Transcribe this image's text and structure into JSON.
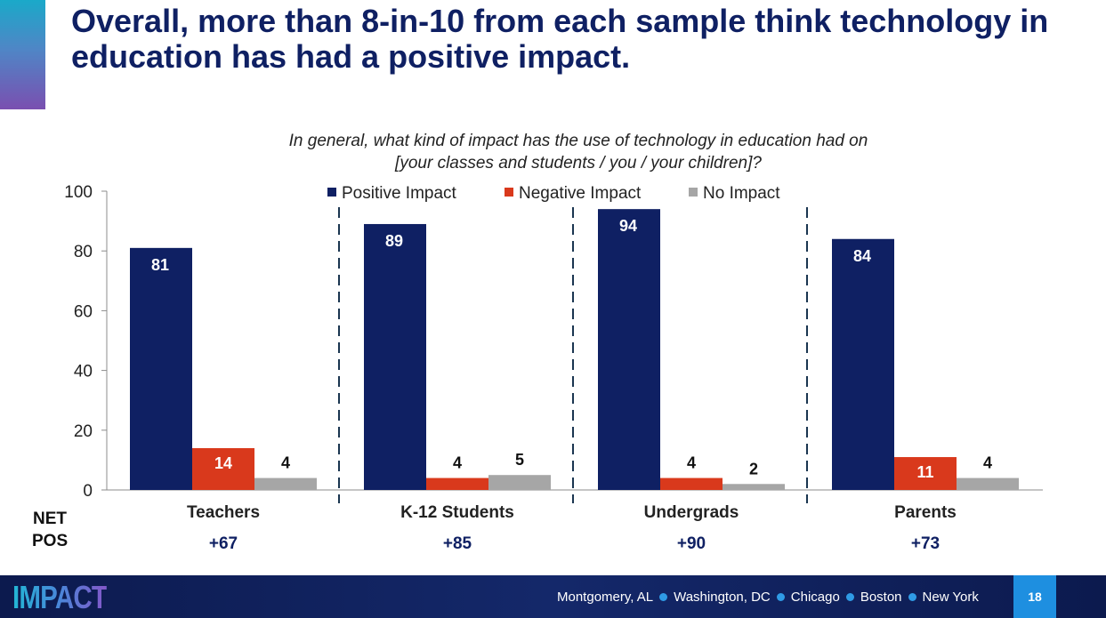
{
  "slide": {
    "title": "Overall, more than 8-in-10 from each sample think technology in education has had a positive impact.",
    "question_line1": "In general, what kind of impact has the use of technology in education had on",
    "question_line2": "[your classes and students / you / your children]?",
    "net_label_line1": "NET",
    "net_label_line2": "POS",
    "page_number": "18"
  },
  "footer": {
    "logo_text": "IMPACT",
    "cities": [
      "Montgomery, AL",
      "Washington, DC",
      "Chicago",
      "Boston",
      "New York"
    ]
  },
  "chart_data": {
    "type": "bar",
    "categories": [
      "Teachers",
      "K-12 Students",
      "Undergrads",
      "Parents"
    ],
    "series": [
      {
        "name": "Positive Impact",
        "color": "#0f2063",
        "values": [
          81,
          89,
          94,
          84
        ]
      },
      {
        "name": "Negative Impact",
        "color": "#d9391c",
        "values": [
          14,
          4,
          4,
          11
        ]
      },
      {
        "name": "No Impact",
        "color": "#a6a6a6",
        "values": [
          4,
          5,
          2,
          4
        ]
      }
    ],
    "net_positive": [
      "+67",
      "+85",
      "+90",
      "+73"
    ],
    "ylim": [
      0,
      100
    ],
    "yticks": [
      0,
      20,
      40,
      60,
      80,
      100
    ],
    "legend": "top-center",
    "grid": false
  }
}
